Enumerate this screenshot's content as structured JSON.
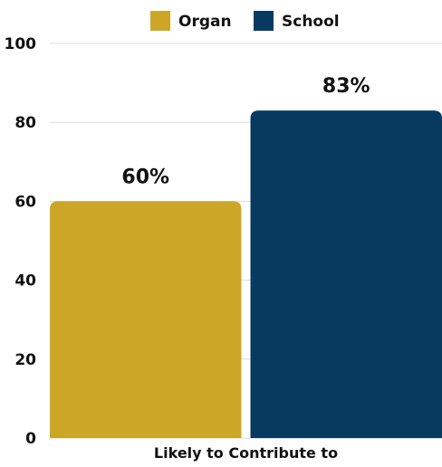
{
  "chart_data": {
    "type": "bar",
    "categories": [
      "Likely to Contribute to"
    ],
    "series": [
      {
        "name": "Organ",
        "values": [
          60
        ],
        "color": "#cca626",
        "label": "60%"
      },
      {
        "name": "School",
        "values": [
          83
        ],
        "color": "#083a60",
        "label": "83%"
      }
    ],
    "ylim": [
      0,
      100
    ],
    "yticks": [
      0,
      20,
      40,
      60,
      80,
      100
    ],
    "grid": true,
    "legend": "top-center",
    "title": "",
    "xlabel": "",
    "ylabel": ""
  }
}
